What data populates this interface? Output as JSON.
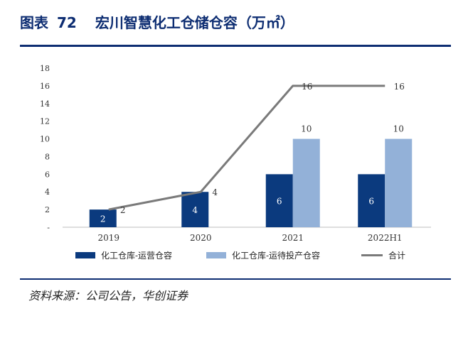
{
  "header": {
    "figure_label": "图表",
    "figure_number": "72",
    "title": "宏川智慧化工仓储仓容（万㎡）"
  },
  "footer": {
    "source": "资料来源：公司公告，华创证券"
  },
  "colors": {
    "accent": "#0d2d72",
    "series_operating": "#0b3a7e",
    "series_pending": "#93b1d8",
    "series_total": "#7a7a7a"
  },
  "chart_data": {
    "type": "bar",
    "categories": [
      "2019",
      "2020",
      "2021",
      "2022H1"
    ],
    "series": [
      {
        "name": "化工仓库-运营仓容",
        "kind": "bar",
        "values": [
          2,
          4,
          6,
          6
        ],
        "labels": [
          "2",
          "4",
          "6",
          "6"
        ]
      },
      {
        "name": "化工仓库-运待投产仓容",
        "kind": "bar",
        "values": [
          null,
          null,
          10,
          10
        ],
        "labels": [
          "",
          "",
          "10",
          "10"
        ]
      },
      {
        "name": "合计",
        "kind": "line",
        "values": [
          2,
          4,
          16,
          16
        ],
        "labels": [
          "2",
          "4",
          "16",
          "16"
        ]
      }
    ],
    "y_ticks": [
      "-",
      "2",
      "4",
      "6",
      "8",
      "10",
      "12",
      "14",
      "16",
      "18"
    ],
    "ylim": [
      0,
      18
    ],
    "grid": false,
    "legend_position": "bottom"
  }
}
